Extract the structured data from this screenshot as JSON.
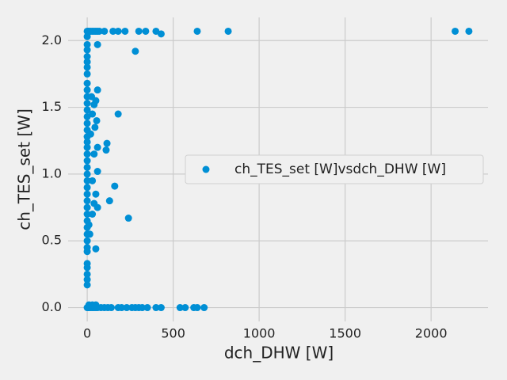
{
  "chart_data": {
    "type": "scatter",
    "x_label": "dch_DHW [W]",
    "y_label": "ch_TES_set [W]",
    "xlim": [
      -111,
      2331
    ],
    "ylim": [
      -0.1035,
      2.1735
    ],
    "xticks": [
      0,
      500,
      1000,
      1500,
      2000
    ],
    "yticks": [
      {
        "value": 0,
        "label": "0.0"
      },
      0.5,
      {
        "value": 1,
        "label": "1.0"
      },
      1.5,
      {
        "value": 2,
        "label": "2.0"
      }
    ],
    "grid": true,
    "legend": "center right",
    "series": [
      {
        "name": "ch_TES_set [W]vsdch_DHW [W]",
        "color": "#008fd5",
        "x": [
          0,
          5,
          10,
          20,
          30,
          40,
          50,
          60,
          70,
          100,
          150,
          180,
          220,
          300,
          340,
          400,
          430,
          640,
          820,
          2140,
          2220,
          0,
          0,
          0,
          0,
          0,
          0,
          0,
          0,
          0,
          0,
          0,
          0,
          0,
          0,
          0,
          0,
          0,
          0,
          0,
          0,
          0,
          0,
          0,
          0,
          0,
          0,
          0,
          0,
          0,
          0,
          0,
          0,
          0,
          0,
          0,
          0,
          0,
          0,
          0,
          25,
          40,
          50,
          60,
          30,
          55,
          45,
          20,
          60,
          40,
          60,
          30,
          50,
          40,
          60,
          30,
          50,
          60,
          180,
          280,
          160,
          130,
          240,
          110,
          115,
          10,
          15,
          0,
          5,
          10,
          20,
          30,
          40,
          50,
          60,
          80,
          100,
          120,
          140,
          180,
          200,
          230,
          260,
          280,
          300,
          320,
          350,
          400,
          430,
          540,
          570,
          620,
          640,
          680,
          10,
          30,
          50
        ],
        "y": [
          2.07,
          2.07,
          2.07,
          2.07,
          2.07,
          2.07,
          2.07,
          2.07,
          2.07,
          2.07,
          2.07,
          2.07,
          2.07,
          2.07,
          2.07,
          2.07,
          2.05,
          2.07,
          2.07,
          2.07,
          2.07,
          2.03,
          1.97,
          1.93,
          1.88,
          1.84,
          1.8,
          1.75,
          1.68,
          1.63,
          1.58,
          1.53,
          1.48,
          1.43,
          1.38,
          1.33,
          1.28,
          1.24,
          1.2,
          1.15,
          1.1,
          1.05,
          1,
          0.95,
          0.9,
          0.85,
          0.8,
          0.75,
          0.7,
          0.65,
          0.6,
          0.55,
          0.5,
          0.45,
          0.42,
          0.33,
          0.3,
          0.25,
          0.21,
          0.17,
          1.58,
          1.52,
          1.55,
          1.63,
          1.45,
          1.4,
          1.35,
          1.3,
          1.2,
          1.15,
          1.02,
          0.95,
          0.85,
          0.78,
          0.75,
          0.7,
          0.44,
          1.97,
          1.45,
          1.92,
          0.91,
          0.8,
          0.67,
          1.18,
          1.23,
          0.62,
          0.55,
          0,
          0,
          0,
          0,
          0,
          0,
          0,
          0,
          0,
          0,
          0,
          0,
          0,
          0,
          0,
          0,
          0,
          0,
          0,
          0,
          0,
          0,
          0,
          0,
          0,
          0,
          0,
          0.02,
          0.02,
          0.02
        ]
      }
    ]
  }
}
